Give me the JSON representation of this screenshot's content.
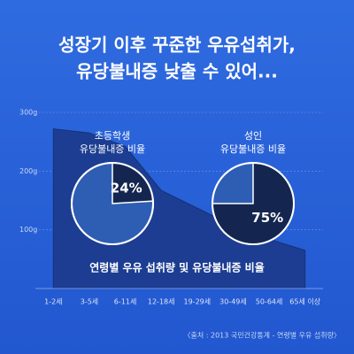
{
  "chart_data": {
    "type": "area",
    "title": [
      "성장기 이후 꾸준한 우유섭취가,",
      "유당불내증 낮출 수 있어..."
    ],
    "subtitle": "연령별 우유 섭취량 및 유당불내증 비율",
    "source": "〈출처 : 2013 국민건강통계 - 연령별 우유 섭취량〉",
    "categories": [
      "1-2세",
      "3-5세",
      "6-11세",
      "12-18세",
      "19-29세",
      "30-49세",
      "50-64세",
      "65세 이상"
    ],
    "values": [
      272,
      265,
      242,
      167,
      137,
      107,
      84,
      65
    ],
    "color": "#1c3d92",
    "ylim": [
      0,
      300
    ],
    "yticks": [
      {
        "value": 100,
        "label": "100g"
      },
      {
        "value": 200,
        "label": "200g"
      },
      {
        "value": 300,
        "label": "300g"
      }
    ],
    "grid": true,
    "pies": [
      {
        "label": [
          "초등학생",
          "유당불내증 비율"
        ],
        "value": 24,
        "value_label": "24%"
      },
      {
        "label": [
          "성인",
          "유당불내증 비율"
        ],
        "value": 75,
        "value_label": "75%"
      }
    ]
  }
}
